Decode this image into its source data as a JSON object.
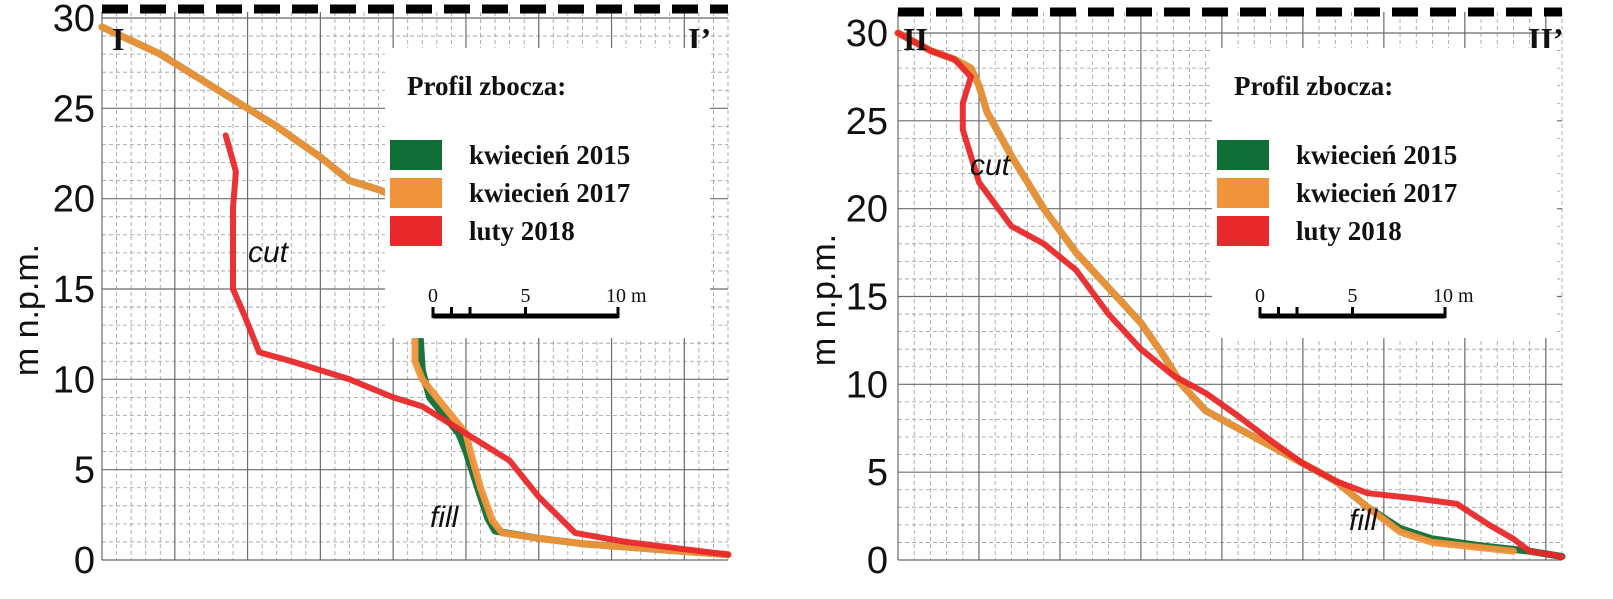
{
  "chart_data": [
    {
      "type": "line",
      "ylabel": "m n.p.m.",
      "ylim": [
        0,
        30
      ],
      "yticks": [
        "0",
        "5",
        "10",
        "15",
        "20",
        "25",
        "30"
      ],
      "section_start": "I",
      "section_end": "I’",
      "legend_title": "Profil zbocza:",
      "legend": [
        "kwiecień  2015",
        "kwiecień 2017",
        "luty 2018"
      ],
      "scale_labels": [
        "0",
        "5",
        "10 m"
      ],
      "annotations": [
        "cut",
        "fill"
      ],
      "series": [
        {
          "name": "kwiecień  2015",
          "color": "#0e6e35",
          "points": [
            [
              0,
              29.5
            ],
            [
              4,
              28
            ],
            [
              6,
              27
            ],
            [
              9,
              25.5
            ],
            [
              12,
              24
            ],
            [
              15,
              22.3
            ],
            [
              17,
              21
            ],
            [
              19,
              20.5
            ],
            [
              20.5,
              20
            ],
            [
              21,
              19
            ],
            [
              21.5,
              18
            ],
            [
              21.8,
              16
            ],
            [
              21.8,
              13
            ],
            [
              22,
              10.5
            ],
            [
              22.5,
              9
            ],
            [
              23.5,
              8
            ],
            [
              24.5,
              7
            ],
            [
              25,
              6
            ],
            [
              25.8,
              4
            ],
            [
              26.5,
              2.3
            ],
            [
              27,
              1.6
            ],
            [
              30,
              1.2
            ],
            [
              33,
              0.9
            ],
            [
              38,
              0.6
            ],
            [
              43,
              0.3
            ]
          ]
        },
        {
          "name": "kwiecień 2017",
          "color": "#f0933a",
          "points": [
            [
              0,
              29.5
            ],
            [
              4,
              28
            ],
            [
              6,
              27
            ],
            [
              9,
              25.5
            ],
            [
              12,
              24
            ],
            [
              15,
              22.3
            ],
            [
              17,
              21
            ],
            [
              19,
              20.5
            ],
            [
              20.5,
              20
            ],
            [
              20.8,
              19
            ],
            [
              21,
              18
            ],
            [
              21.3,
              16
            ],
            [
              21.5,
              13
            ],
            [
              21.5,
              11
            ],
            [
              22,
              10
            ],
            [
              23,
              9
            ],
            [
              24,
              8
            ],
            [
              25,
              7
            ],
            [
              25.3,
              6
            ],
            [
              26,
              4
            ],
            [
              26.8,
              2.2
            ],
            [
              27.5,
              1.5
            ],
            [
              30,
              1.2
            ],
            [
              33,
              0.9
            ],
            [
              38,
              0.6
            ],
            [
              43,
              0.3
            ]
          ]
        },
        {
          "name": "luty 2018",
          "color": "#e8282a",
          "points": [
            [
              8.5,
              23.5
            ],
            [
              9.2,
              21.5
            ],
            [
              9,
              19.5
            ],
            [
              9,
              17.5
            ],
            [
              9,
              15
            ],
            [
              9.8,
              13.5
            ],
            [
              10.8,
              11.5
            ],
            [
              13,
              11
            ],
            [
              15,
              10.5
            ],
            [
              17,
              10
            ],
            [
              20,
              9
            ],
            [
              22,
              8.5
            ],
            [
              24,
              7.5
            ],
            [
              26,
              6.5
            ],
            [
              28,
              5.5
            ],
            [
              30,
              3.5
            ],
            [
              32.5,
              1.5
            ],
            [
              36,
              1
            ],
            [
              43,
              0.3
            ]
          ]
        }
      ]
    },
    {
      "type": "line",
      "ylabel": "m n.p.m.",
      "ylim": [
        0,
        30
      ],
      "yticks": [
        "0",
        "5",
        "10",
        "15",
        "20",
        "25",
        "30"
      ],
      "section_start": "II",
      "section_end": "II’",
      "legend_title": "Profil zbocza:",
      "legend": [
        "kwiecień  2015",
        "kwiecień 2017",
        "luty 2018"
      ],
      "scale_labels": [
        "0",
        "5",
        "10 m"
      ],
      "annotations": [
        "cut",
        "fill"
      ],
      "series": [
        {
          "name": "kwiecień  2015",
          "color": "#0e6e35",
          "points": [
            [
              0,
              30
            ],
            [
              2,
              29
            ],
            [
              3.5,
              28.5
            ],
            [
              4.5,
              28
            ],
            [
              5,
              27
            ],
            [
              5.5,
              25.5
            ],
            [
              7,
              23
            ],
            [
              9,
              20
            ],
            [
              11,
              17.5
            ],
            [
              13,
              15.5
            ],
            [
              15,
              13.5
            ],
            [
              16.5,
              11.5
            ],
            [
              17.5,
              10
            ],
            [
              19,
              8.5
            ],
            [
              21,
              7.5
            ],
            [
              23,
              6.5
            ],
            [
              25,
              5.5
            ],
            [
              27,
              4.5
            ],
            [
              29,
              3
            ],
            [
              31,
              1.8
            ],
            [
              33,
              1.2
            ],
            [
              36,
              0.8
            ],
            [
              39,
              0.5
            ],
            [
              41,
              0.2
            ]
          ]
        },
        {
          "name": "kwiecień 2017",
          "color": "#f0933a",
          "points": [
            [
              0,
              30
            ],
            [
              2,
              29
            ],
            [
              3.5,
              28.5
            ],
            [
              4.5,
              28
            ],
            [
              5,
              27
            ],
            [
              5.5,
              25.5
            ],
            [
              7,
              23
            ],
            [
              9,
              20
            ],
            [
              11,
              17.5
            ],
            [
              13,
              15.5
            ],
            [
              15,
              13.5
            ],
            [
              16.5,
              11.5
            ],
            [
              17.5,
              10
            ],
            [
              19,
              8.5
            ],
            [
              21,
              7.5
            ],
            [
              23,
              6.5
            ],
            [
              25,
              5.5
            ],
            [
              27,
              4.5
            ],
            [
              29,
              3
            ],
            [
              31,
              1.6
            ],
            [
              33,
              1
            ],
            [
              36,
              0.7
            ],
            [
              38,
              0.5
            ]
          ]
        },
        {
          "name": "luty 2018",
          "color": "#e8282a",
          "points": [
            [
              0,
              30
            ],
            [
              2,
              29
            ],
            [
              3.5,
              28.5
            ],
            [
              4.5,
              27.5
            ],
            [
              4,
              26
            ],
            [
              4,
              24.5
            ],
            [
              5,
              21.5
            ],
            [
              7,
              19
            ],
            [
              9,
              18
            ],
            [
              11,
              16.5
            ],
            [
              13,
              14
            ],
            [
              15,
              12
            ],
            [
              17,
              10.5
            ],
            [
              19,
              9.5
            ],
            [
              21,
              8.2
            ],
            [
              23,
              6.8
            ],
            [
              25,
              5.5
            ],
            [
              27,
              4.5
            ],
            [
              29,
              3.8
            ],
            [
              32,
              3.5
            ],
            [
              34.5,
              3.2
            ],
            [
              36.5,
              2
            ],
            [
              38,
              1.2
            ],
            [
              39,
              0.5
            ],
            [
              41,
              0.2
            ]
          ]
        }
      ]
    }
  ]
}
